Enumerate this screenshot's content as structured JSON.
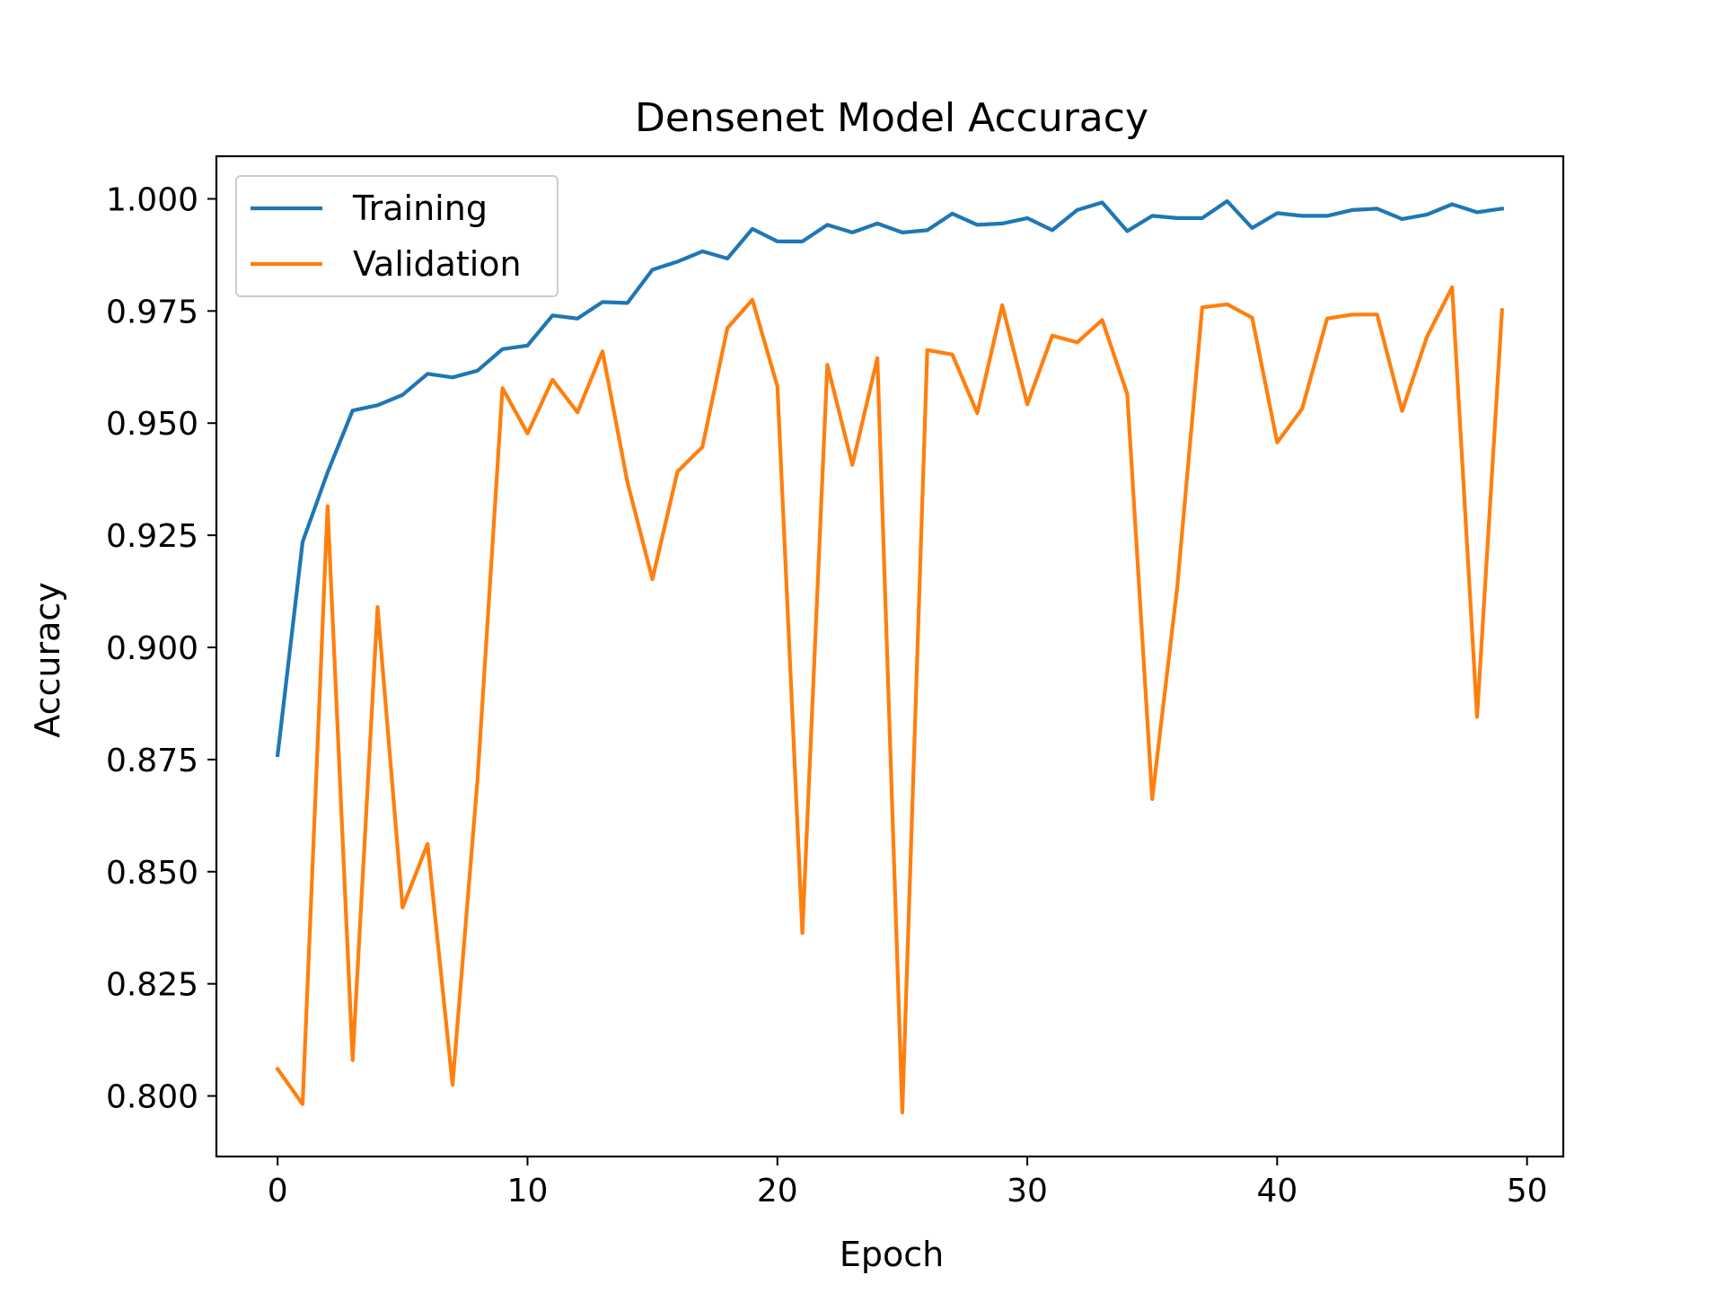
{
  "chart_data": {
    "type": "line",
    "title": "Densenet Model Accuracy",
    "xlabel": "Epoch",
    "ylabel": "Accuracy",
    "xlim": [
      -2.45,
      51.45
    ],
    "ylim": [
      0.7865,
      1.0095
    ],
    "xticks": [
      0,
      10,
      20,
      30,
      40,
      50
    ],
    "yticks": [
      0.8,
      0.825,
      0.85,
      0.875,
      0.9,
      0.925,
      0.95,
      0.975,
      1.0
    ],
    "ytick_labels": [
      "0.800",
      "0.825",
      "0.850",
      "0.875",
      "0.900",
      "0.925",
      "0.950",
      "0.975",
      "1.000"
    ],
    "grid": false,
    "legend_position": "upper-left",
    "x": [
      0,
      1,
      2,
      3,
      4,
      5,
      6,
      7,
      8,
      9,
      10,
      11,
      12,
      13,
      14,
      15,
      16,
      17,
      18,
      19,
      20,
      21,
      22,
      23,
      24,
      25,
      26,
      27,
      28,
      29,
      30,
      31,
      32,
      33,
      34,
      35,
      36,
      37,
      38,
      39,
      40,
      41,
      42,
      43,
      44,
      45,
      46,
      47,
      48,
      49
    ],
    "series": [
      {
        "name": "Training",
        "color": "#1f77b4",
        "values": [
          0.876,
          0.9235,
          0.939,
          0.9528,
          0.954,
          0.9563,
          0.961,
          0.9602,
          0.9617,
          0.9665,
          0.9673,
          0.974,
          0.9733,
          0.977,
          0.9768,
          0.9842,
          0.986,
          0.9883,
          0.9867,
          0.9933,
          0.9905,
          0.9905,
          0.9942,
          0.9925,
          0.9945,
          0.9925,
          0.993,
          0.9967,
          0.9942,
          0.9945,
          0.9957,
          0.993,
          0.9975,
          0.9992,
          0.9928,
          0.9962,
          0.9957,
          0.9957,
          0.9995,
          0.9935,
          0.9968,
          0.9962,
          0.9962,
          0.9975,
          0.9978,
          0.9955,
          0.9965,
          0.9988,
          0.997,
          0.9978
        ]
      },
      {
        "name": "Validation",
        "color": "#ff7f0e",
        "values": [
          0.806,
          0.7982,
          0.9315,
          0.808,
          0.909,
          0.842,
          0.8562,
          0.8025,
          0.8705,
          0.9578,
          0.9477,
          0.9597,
          0.9524,
          0.966,
          0.9368,
          0.9152,
          0.9392,
          0.9447,
          0.9712,
          0.9775,
          0.9582,
          0.8363,
          0.963,
          0.9407,
          0.9645,
          0.7963,
          0.9663,
          0.9653,
          0.9522,
          0.9763,
          0.9542,
          0.9695,
          0.968,
          0.973,
          0.9565,
          0.8662,
          0.9133,
          0.9758,
          0.9765,
          0.9735,
          0.9457,
          0.9532,
          0.9733,
          0.9742,
          0.9742,
          0.9527,
          0.9693,
          0.9803,
          0.8845,
          0.9752
        ]
      }
    ]
  }
}
